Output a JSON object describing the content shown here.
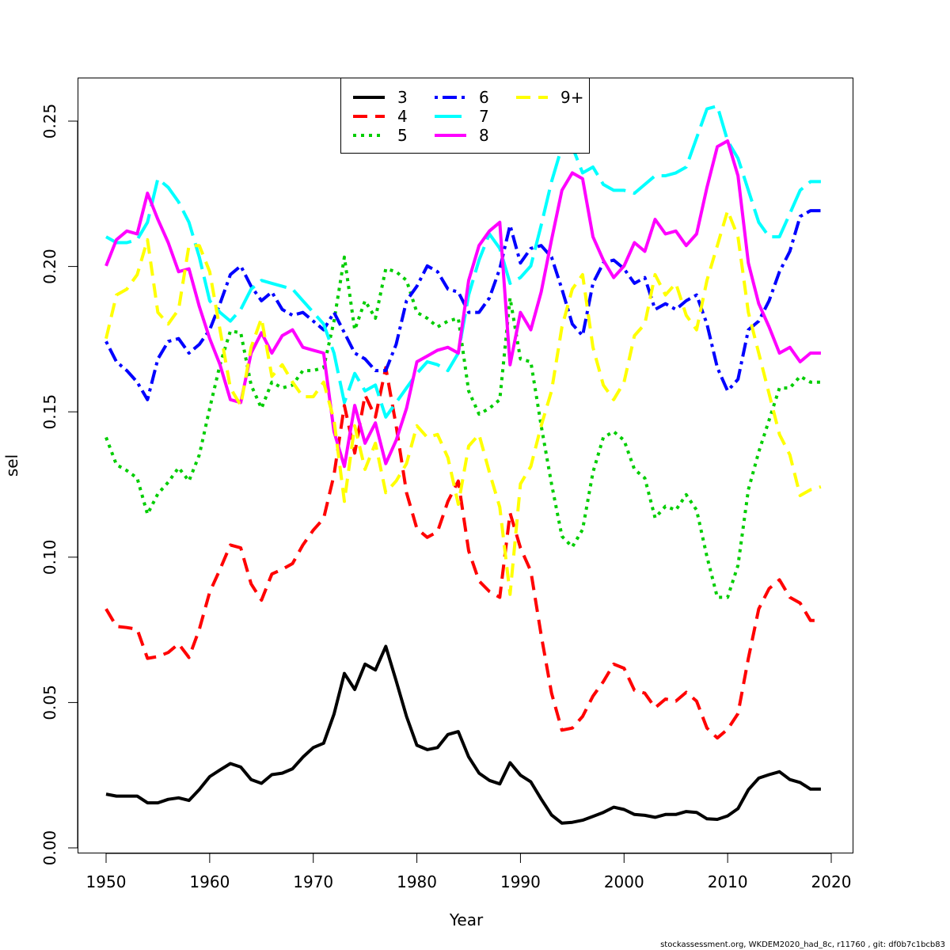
{
  "chart_data": {
    "type": "line",
    "title": "",
    "xlabel": "Year",
    "ylabel": "sel",
    "xlim": [
      1950,
      2019
    ],
    "ylim": [
      0,
      0.25
    ],
    "x_ticks": [
      "1950",
      "1960",
      "1970",
      "1980",
      "1990",
      "2000",
      "2010",
      "2020"
    ],
    "y_ticks": [
      "0.00",
      "0.05",
      "0.10",
      "0.15",
      "0.20",
      "0.25"
    ],
    "footer": "stockassessment.org, WKDEM2020_had_8c, r11760 , git: df0b7c1bcb83",
    "legend_position": "top-center",
    "x": [
      1950,
      1951,
      1952,
      1953,
      1954,
      1955,
      1956,
      1957,
      1958,
      1959,
      1960,
      1961,
      1962,
      1963,
      1964,
      1965,
      1966,
      1967,
      1968,
      1969,
      1970,
      1971,
      1972,
      1973,
      1974,
      1975,
      1976,
      1977,
      1978,
      1979,
      1980,
      1981,
      1982,
      1983,
      1984,
      1985,
      1986,
      1987,
      1988,
      1989,
      1990,
      1991,
      1992,
      1993,
      1994,
      1995,
      1996,
      1997,
      1998,
      1999,
      2000,
      2001,
      2002,
      2003,
      2004,
      2005,
      2006,
      2007,
      2008,
      2009,
      2010,
      2011,
      2012,
      2013,
      2014,
      2015,
      2016,
      2017,
      2018,
      2019
    ],
    "series": [
      {
        "name": "3",
        "color": "#000000",
        "dash": "solid",
        "values": [
          0.0185,
          0.0178,
          0.0178,
          0.0178,
          0.0155,
          0.0155,
          0.0167,
          0.0172,
          0.0163,
          0.0201,
          0.0245,
          0.0268,
          0.029,
          0.0278,
          0.0235,
          0.0222,
          0.0252,
          0.0257,
          0.0272,
          0.0312,
          0.0345,
          0.036,
          0.046,
          0.06,
          0.0545,
          0.0632,
          0.0612,
          0.0693,
          0.0575,
          0.0452,
          0.0353,
          0.0338,
          0.0345,
          0.039,
          0.04,
          0.0313,
          0.0257,
          0.0232,
          0.022,
          0.0293,
          0.025,
          0.0227,
          0.0168,
          0.0113,
          0.0085,
          0.0088,
          0.0095,
          0.0108,
          0.0122,
          0.014,
          0.0132,
          0.0115,
          0.0112,
          0.0105,
          0.0115,
          0.0115,
          0.0125,
          0.0122,
          0.01,
          0.0098,
          0.011,
          0.0135,
          0.02,
          0.024,
          0.0252,
          0.0262,
          0.0235,
          0.0225,
          0.0202,
          0.0202
        ]
      },
      {
        "name": "4",
        "color": "#ff0000",
        "dash": "dashed",
        "values": [
          0.0822,
          0.0762,
          0.0758,
          0.0752,
          0.0652,
          0.0658,
          0.0672,
          0.0702,
          0.0655,
          0.0752,
          0.088,
          0.0958,
          0.1042,
          0.1032,
          0.0908,
          0.0852,
          0.0942,
          0.0958,
          0.0978,
          0.1042,
          0.1093,
          0.1133,
          0.1283,
          0.1522,
          0.1358,
          0.1558,
          0.1482,
          0.1652,
          0.1452,
          0.1222,
          0.1098,
          0.1068,
          0.1088,
          0.1192,
          0.1262,
          0.1022,
          0.0918,
          0.0882,
          0.0862,
          0.1152,
          0.1032,
          0.0952,
          0.0732,
          0.0532,
          0.0405,
          0.0412,
          0.0452,
          0.0522,
          0.0572,
          0.0632,
          0.0618,
          0.0542,
          0.0532,
          0.0482,
          0.0512,
          0.0505,
          0.0535,
          0.0505,
          0.0412,
          0.0378,
          0.0408,
          0.0462,
          0.0652,
          0.0822,
          0.0892,
          0.0922,
          0.0862,
          0.0842,
          0.0782,
          0.0782
        ]
      },
      {
        "name": "5",
        "color": "#00cd00",
        "dash": "dotted",
        "values": [
          0.1412,
          0.1318,
          0.1298,
          0.1272,
          0.1148,
          0.1218,
          0.1258,
          0.1308,
          0.1262,
          0.1352,
          0.1512,
          0.1662,
          0.1778,
          0.1772,
          0.1592,
          0.1512,
          0.1602,
          0.1582,
          0.1592,
          0.1642,
          0.1642,
          0.1652,
          0.1812,
          0.2032,
          0.1782,
          0.1882,
          0.1822,
          0.1992,
          0.1982,
          0.1952,
          0.1842,
          0.1822,
          0.1792,
          0.1812,
          0.1822,
          0.1572,
          0.1492,
          0.1512,
          0.1542,
          0.1892,
          0.1682,
          0.1672,
          0.1452,
          0.1252,
          0.1072,
          0.1035,
          0.1095,
          0.1292,
          0.1412,
          0.1432,
          0.1402,
          0.1302,
          0.1272,
          0.1135,
          0.1175,
          0.1162,
          0.1215,
          0.1162,
          0.1002,
          0.0862,
          0.0862,
          0.0972,
          0.1232,
          0.1362,
          0.1472,
          0.1582,
          0.1582,
          0.1622,
          0.1602,
          0.1602
        ]
      },
      {
        "name": "6",
        "color": "#0000ff",
        "dash": "dashdot",
        "values": [
          0.1742,
          0.1672,
          0.1642,
          0.1602,
          0.1542,
          0.1682,
          0.1742,
          0.1752,
          0.1702,
          0.1732,
          0.1782,
          0.1872,
          0.1972,
          0.2002,
          0.1932,
          0.1882,
          0.1912,
          0.1852,
          0.1832,
          0.1842,
          0.1812,
          0.1782,
          0.1842,
          0.1772,
          0.1702,
          0.1682,
          0.1642,
          0.1642,
          0.1732,
          0.1882,
          0.1932,
          0.2002,
          0.1982,
          0.1922,
          0.1912,
          0.1842,
          0.1842,
          0.1892,
          0.1992,
          0.2142,
          0.2012,
          0.2062,
          0.2072,
          0.2032,
          0.1922,
          0.1802,
          0.1762,
          0.1942,
          0.2012,
          0.2022,
          0.1992,
          0.1942,
          0.1962,
          0.1852,
          0.1872,
          0.1852,
          0.1882,
          0.1902,
          0.1802,
          0.1652,
          0.1572,
          0.1612,
          0.1782,
          0.1812,
          0.1882,
          0.1982,
          0.2052,
          0.2172,
          0.2192,
          0.2192
        ]
      },
      {
        "name": "7",
        "color": "#00ffff",
        "dash": "longdash",
        "values": [
          0.2102,
          0.2082,
          0.2082,
          0.2092,
          0.2152,
          0.2302,
          0.2272,
          0.2222,
          0.2152,
          0.2032,
          0.1882,
          0.1842,
          0.1812,
          0.1852,
          0.1922,
          0.1952,
          0.1942,
          0.1932,
          0.1922,
          0.1882,
          0.1842,
          0.1802,
          0.1702,
          0.1532,
          0.1632,
          0.1572,
          0.1592,
          0.1482,
          0.1532,
          0.1582,
          0.1632,
          0.1672,
          0.1662,
          0.1642,
          0.1702,
          0.1902,
          0.2022,
          0.2112,
          0.2062,
          0.1942,
          0.1962,
          0.2002,
          0.2142,
          0.2292,
          0.2412,
          0.2412,
          0.2322,
          0.2342,
          0.2282,
          0.2262,
          0.2262,
          0.2252,
          0.2282,
          0.2312,
          0.2312,
          0.2322,
          0.2342,
          0.2442,
          0.2542,
          0.2552,
          0.2432,
          0.2372,
          0.2262,
          0.2152,
          0.2102,
          0.2102,
          0.2182,
          0.2262,
          0.2292,
          0.2292
        ]
      },
      {
        "name": "8",
        "color": "#ff00ff",
        "dash": "solid",
        "values": [
          0.2002,
          0.2092,
          0.2122,
          0.2112,
          0.2252,
          0.2162,
          0.2082,
          0.1982,
          0.1992,
          0.1862,
          0.1752,
          0.1662,
          0.1542,
          0.1532,
          0.1702,
          0.1772,
          0.1702,
          0.1762,
          0.1782,
          0.1722,
          0.1712,
          0.1702,
          0.1432,
          0.1312,
          0.1522,
          0.1392,
          0.1462,
          0.1322,
          0.1402,
          0.1512,
          0.1672,
          0.1692,
          0.1712,
          0.1722,
          0.1702,
          0.1952,
          0.2072,
          0.2122,
          0.2152,
          0.1662,
          0.1842,
          0.1782,
          0.1912,
          0.2092,
          0.2262,
          0.2322,
          0.2302,
          0.2102,
          0.2022,
          0.1962,
          0.2002,
          0.2082,
          0.2052,
          0.2162,
          0.2112,
          0.2122,
          0.2072,
          0.2112,
          0.2272,
          0.2412,
          0.2432,
          0.2312,
          0.2012,
          0.1872,
          0.1792,
          0.1702,
          0.1722,
          0.1672,
          0.1702,
          0.1702
        ]
      },
      {
        "name": "9+",
        "color": "#ffff00",
        "dash": "dashed",
        "values": [
          0.1752,
          0.1902,
          0.1922,
          0.1972,
          0.2092,
          0.1842,
          0.1802,
          0.1852,
          0.2072,
          0.2072,
          0.1982,
          0.1782,
          0.1582,
          0.1522,
          0.1722,
          0.1822,
          0.1622,
          0.1662,
          0.1602,
          0.1552,
          0.1552,
          0.1602,
          0.1472,
          0.1192,
          0.1452,
          0.1302,
          0.1392,
          0.1222,
          0.1262,
          0.1322,
          0.1452,
          0.1412,
          0.1422,
          0.1342,
          0.1182,
          0.1382,
          0.1422,
          0.1292,
          0.1172,
          0.0872,
          0.1252,
          0.1312,
          0.1452,
          0.1572,
          0.1792,
          0.1922,
          0.1972,
          0.1722,
          0.1592,
          0.1542,
          0.1602,
          0.1762,
          0.1802,
          0.1972,
          0.1902,
          0.1942,
          0.1832,
          0.1782,
          0.1952,
          0.2072,
          0.2192,
          0.2102,
          0.1842,
          0.1702,
          0.1562,
          0.1422,
          0.1352,
          0.1212,
          0.1232,
          0.1242
        ]
      }
    ]
  }
}
